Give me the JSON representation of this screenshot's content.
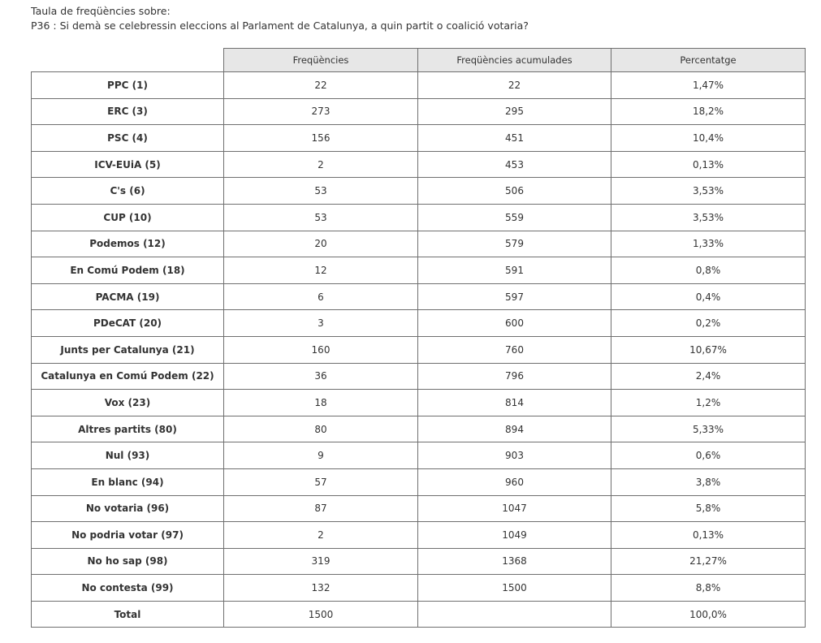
{
  "caption": {
    "line1": "Taula de freqüències sobre:",
    "line2": "P36 : Si demà se celebressin eleccions al Parlament de Catalunya, a quin partit o coalició votaria?"
  },
  "table": {
    "headers": [
      "",
      "Freqüències",
      "Freqüències acumulades",
      "Percentatge"
    ],
    "rows": [
      [
        "PPC (1)",
        "22",
        "22",
        "1,47%"
      ],
      [
        "ERC (3)",
        "273",
        "295",
        "18,2%"
      ],
      [
        "PSC (4)",
        "156",
        "451",
        "10,4%"
      ],
      [
        "ICV-EUiA (5)",
        "2",
        "453",
        "0,13%"
      ],
      [
        "C's (6)",
        "53",
        "506",
        "3,53%"
      ],
      [
        "CUP (10)",
        "53",
        "559",
        "3,53%"
      ],
      [
        "Podemos (12)",
        "20",
        "579",
        "1,33%"
      ],
      [
        "En Comú Podem (18)",
        "12",
        "591",
        "0,8%"
      ],
      [
        "PACMA (19)",
        "6",
        "597",
        "0,4%"
      ],
      [
        "PDeCAT (20)",
        "3",
        "600",
        "0,2%"
      ],
      [
        "Junts per Catalunya (21)",
        "160",
        "760",
        "10,67%"
      ],
      [
        "Catalunya en Comú Podem (22)",
        "36",
        "796",
        "2,4%"
      ],
      [
        "Vox (23)",
        "18",
        "814",
        "1,2%"
      ],
      [
        "Altres partits (80)",
        "80",
        "894",
        "5,33%"
      ],
      [
        "Nul (93)",
        "9",
        "903",
        "0,6%"
      ],
      [
        "En blanc (94)",
        "57",
        "960",
        "3,8%"
      ],
      [
        "No votaria (96)",
        "87",
        "1047",
        "5,8%"
      ],
      [
        "No podria votar (97)",
        "2",
        "1049",
        "0,13%"
      ],
      [
        "No ho sap (98)",
        "319",
        "1368",
        "21,27%"
      ],
      [
        "No contesta (99)",
        "132",
        "1500",
        "8,8%"
      ],
      [
        "Total",
        "1500",
        "",
        "100,0%"
      ]
    ]
  }
}
